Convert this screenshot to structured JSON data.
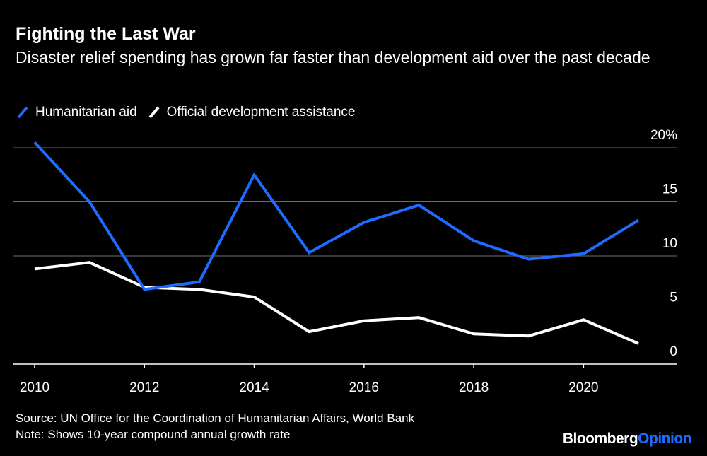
{
  "header": {
    "title": "Fighting the Last War",
    "subtitle": "Disaster relief spending has grown far faster than development aid over the past decade"
  },
  "legend": {
    "items": [
      {
        "label": "Humanitarian aid",
        "color": "#1f6bff"
      },
      {
        "label": "Official development assistance",
        "color": "#ffffff"
      }
    ]
  },
  "chart_data": {
    "type": "line",
    "title": "Fighting the Last War",
    "subtitle": "Disaster relief spending has grown far faster than development aid over the past decade",
    "xlabel": "",
    "ylabel": "",
    "x": [
      2010,
      2011,
      2012,
      2013,
      2014,
      2015,
      2016,
      2017,
      2018,
      2019,
      2020,
      2021
    ],
    "x_ticks": [
      "2010",
      "2012",
      "2014",
      "2016",
      "2018",
      "2020"
    ],
    "x_tick_values": [
      2010,
      2012,
      2014,
      2016,
      2018,
      2020
    ],
    "y_ticks": [
      "20%",
      "15",
      "10",
      "5",
      "0"
    ],
    "y_tick_values": [
      20,
      15,
      10,
      5,
      0
    ],
    "xlim": [
      2010,
      2021.5
    ],
    "ylim": [
      0,
      20
    ],
    "grid": true,
    "legend_position": "top-left",
    "series": [
      {
        "name": "Humanitarian aid",
        "color": "#1f6bff",
        "values": [
          20.5,
          15.0,
          6.9,
          7.6,
          17.5,
          10.3,
          13.1,
          14.7,
          11.4,
          9.7,
          10.2,
          13.3
        ]
      },
      {
        "name": "Official development assistance",
        "color": "#ffffff",
        "values": [
          8.8,
          9.4,
          7.1,
          6.9,
          6.2,
          3.0,
          4.0,
          4.3,
          2.8,
          2.6,
          4.1,
          1.9
        ]
      }
    ]
  },
  "footer": {
    "source": "Source: UN Office for the Coordination of Humanitarian Affairs, World Bank",
    "note": "Note: Shows 10-year compound annual growth rate"
  },
  "brand": {
    "part1": "Bloomberg",
    "part2": "Opinion",
    "part2_color": "#1f6bff"
  }
}
